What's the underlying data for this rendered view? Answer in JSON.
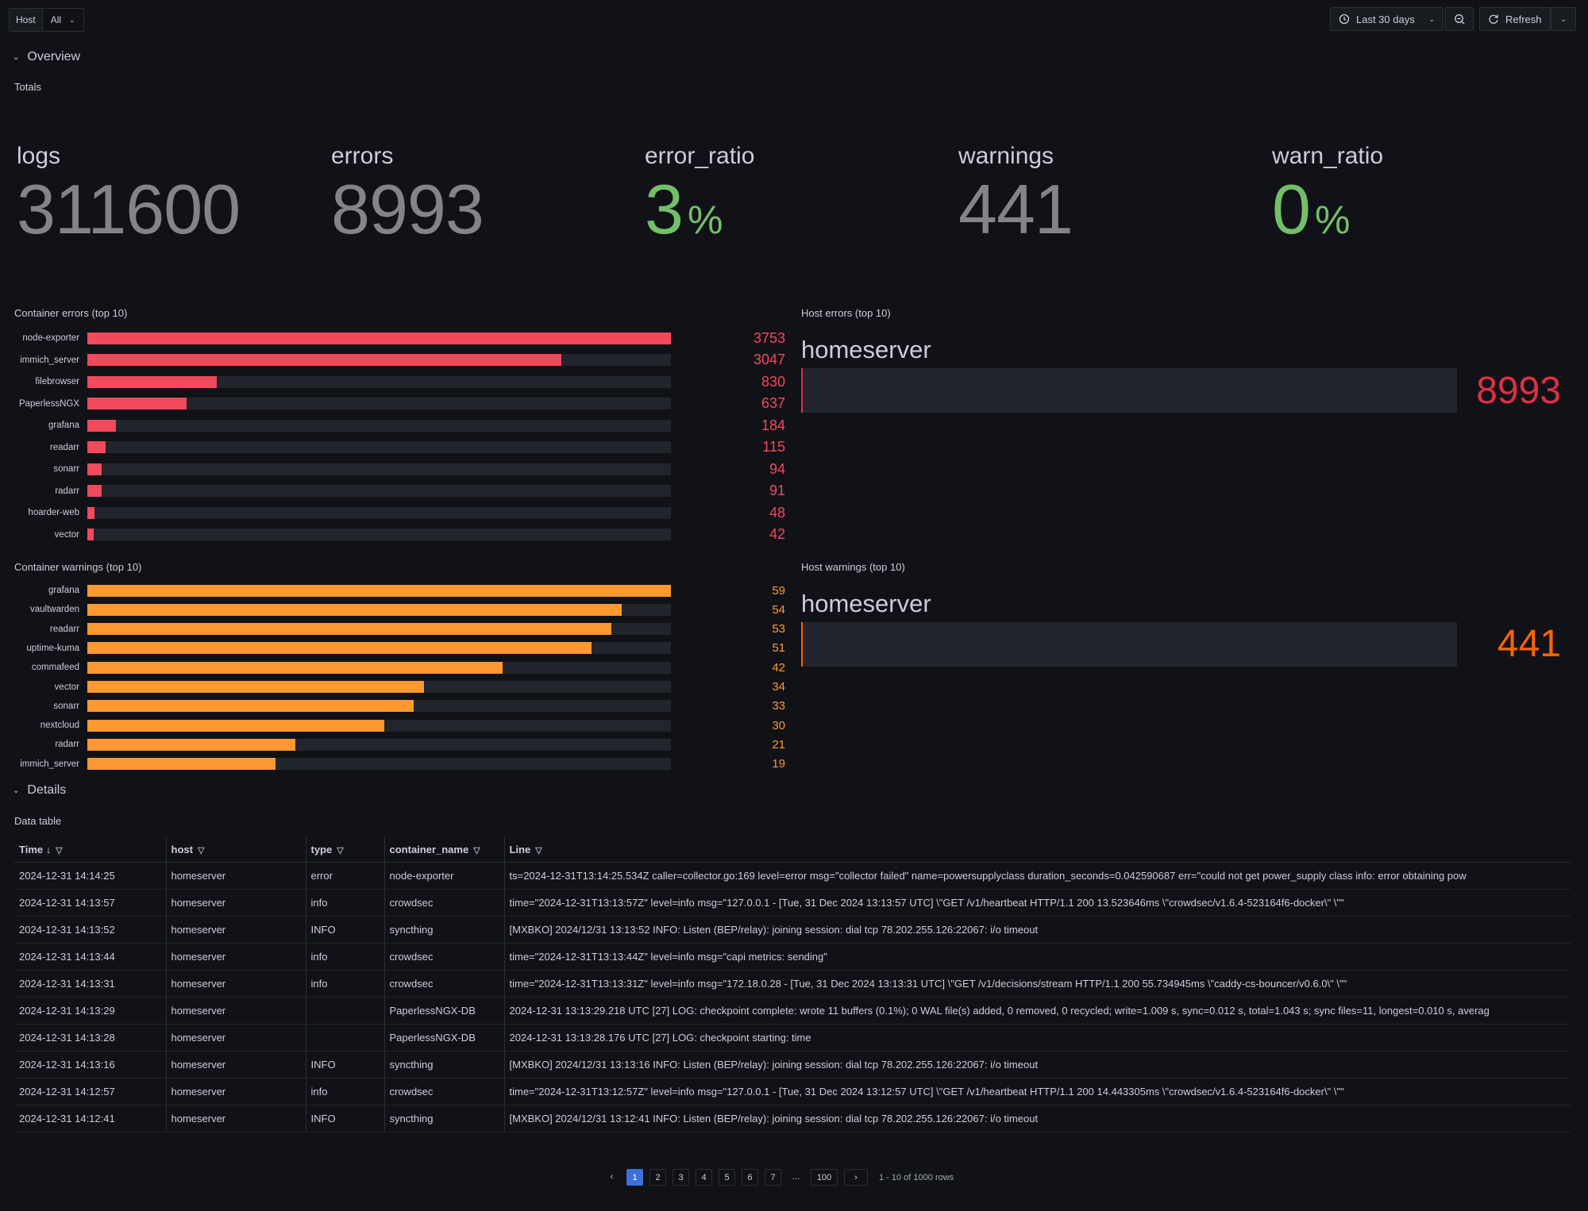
{
  "topbar": {
    "variable_label": "Host",
    "variable_value": "All",
    "time_range": "Last 30 days",
    "refresh_label": "Refresh"
  },
  "overview": {
    "row_title": "Overview",
    "totals_title": "Totals",
    "stats": [
      {
        "name": "logs",
        "value": "311600",
        "unit": ""
      },
      {
        "name": "errors",
        "value": "8993",
        "unit": ""
      },
      {
        "name": "error_ratio",
        "value": "3",
        "unit": "%"
      },
      {
        "name": "warnings",
        "value": "441",
        "unit": ""
      },
      {
        "name": "warn_ratio",
        "value": "0",
        "unit": "%"
      }
    ],
    "container_errors": {
      "title": "Container errors (top 10)",
      "color": "#f2495c",
      "max": 3753,
      "items": [
        {
          "label": "node-exporter",
          "value": 3753
        },
        {
          "label": "immich_server",
          "value": 3047
        },
        {
          "label": "filebrowser",
          "value": 830
        },
        {
          "label": "PaperlessNGX",
          "value": 637
        },
        {
          "label": "grafana",
          "value": 184
        },
        {
          "label": "readarr",
          "value": 115
        },
        {
          "label": "sonarr",
          "value": 94
        },
        {
          "label": "radarr",
          "value": 91
        },
        {
          "label": "hoarder-web",
          "value": 48
        },
        {
          "label": "vector",
          "value": 42
        }
      ]
    },
    "container_warnings": {
      "title": "Container warnings (top 10)",
      "color": "#ff9830",
      "max": 59,
      "items": [
        {
          "label": "grafana",
          "value": 59
        },
        {
          "label": "vaultwarden",
          "value": 54
        },
        {
          "label": "readarr",
          "value": 53
        },
        {
          "label": "uptime-kuma",
          "value": 51
        },
        {
          "label": "commafeed",
          "value": 42
        },
        {
          "label": "vector",
          "value": 34
        },
        {
          "label": "sonarr",
          "value": 33
        },
        {
          "label": "nextcloud",
          "value": 30
        },
        {
          "label": "radarr",
          "value": 21
        },
        {
          "label": "immich_server",
          "value": 19
        }
      ]
    },
    "host_errors": {
      "title": "Host errors (top 10)",
      "host": "homeserver",
      "value": "8993",
      "color": "#e02f44"
    },
    "host_warnings": {
      "title": "Host warnings (top 10)",
      "host": "homeserver",
      "value": "441",
      "color": "#fa6400"
    }
  },
  "details": {
    "row_title": "Details",
    "table_title": "Data table",
    "columns": [
      "Time",
      "host",
      "type",
      "container_name",
      "Line"
    ],
    "rows": [
      [
        "2024-12-31 14:14:25",
        "homeserver",
        "error",
        "node-exporter",
        "ts=2024-12-31T13:14:25.534Z caller=collector.go:169 level=error msg=\"collector failed\" name=powersupplyclass duration_seconds=0.042590687 err=\"could not get power_supply class info: error obtaining pow"
      ],
      [
        "2024-12-31 14:13:57",
        "homeserver",
        "info",
        "crowdsec",
        "time=\"2024-12-31T13:13:57Z\" level=info msg=\"127.0.0.1 - [Tue, 31 Dec 2024 13:13:57 UTC] \\\"GET /v1/heartbeat HTTP/1.1 200 13.523646ms \\\"crowdsec/v1.6.4-523164f6-docker\\\" \\\"\""
      ],
      [
        "2024-12-31 14:13:52",
        "homeserver",
        "INFO",
        "syncthing",
        "[MXBKO] 2024/12/31 13:13:52 INFO: Listen (BEP/relay): joining session: dial tcp 78.202.255.126:22067: i/o timeout"
      ],
      [
        "2024-12-31 14:13:44",
        "homeserver",
        "info",
        "crowdsec",
        "time=\"2024-12-31T13:13:44Z\" level=info msg=\"capi metrics: sending\""
      ],
      [
        "2024-12-31 14:13:31",
        "homeserver",
        "info",
        "crowdsec",
        "time=\"2024-12-31T13:13:31Z\" level=info msg=\"172.18.0.28 - [Tue, 31 Dec 2024 13:13:31 UTC] \\\"GET /v1/decisions/stream HTTP/1.1 200 55.734945ms \\\"caddy-cs-bouncer/v0.6.0\\\" \\\"\""
      ],
      [
        "2024-12-31 14:13:29",
        "homeserver",
        "",
        "PaperlessNGX-DB",
        "2024-12-31 13:13:29.218 UTC [27] LOG: checkpoint complete: wrote 11 buffers (0.1%); 0 WAL file(s) added, 0 removed, 0 recycled; write=1.009 s, sync=0.012 s, total=1.043 s; sync files=11, longest=0.010 s, averag"
      ],
      [
        "2024-12-31 14:13:28",
        "homeserver",
        "",
        "PaperlessNGX-DB",
        "2024-12-31 13:13:28.176 UTC [27] LOG: checkpoint starting: time"
      ],
      [
        "2024-12-31 14:13:16",
        "homeserver",
        "INFO",
        "syncthing",
        "[MXBKO] 2024/12/31 13:13:16 INFO: Listen (BEP/relay): joining session: dial tcp 78.202.255.126:22067: i/o timeout"
      ],
      [
        "2024-12-31 14:12:57",
        "homeserver",
        "info",
        "crowdsec",
        "time=\"2024-12-31T13:12:57Z\" level=info msg=\"127.0.0.1 - [Tue, 31 Dec 2024 13:12:57 UTC] \\\"GET /v1/heartbeat HTTP/1.1 200 14.443305ms \\\"crowdsec/v1.6.4-523164f6-docker\\\" \\\"\""
      ],
      [
        "2024-12-31 14:12:41",
        "homeserver",
        "INFO",
        "syncthing",
        "[MXBKO] 2024/12/31 13:12:41 INFO: Listen (BEP/relay): joining session: dial tcp 78.202.255.126:22067: i/o timeout"
      ]
    ],
    "pagination": {
      "pages": [
        "1",
        "2",
        "3",
        "4",
        "5",
        "6",
        "7",
        "…",
        "100"
      ],
      "active": "1",
      "summary": "1 - 10 of 1000 rows"
    }
  }
}
